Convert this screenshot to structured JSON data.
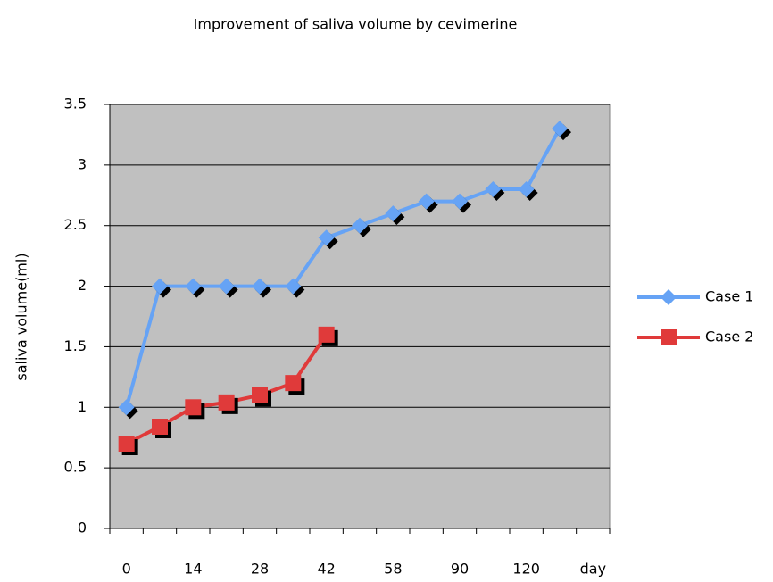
{
  "chart_data": {
    "type": "line",
    "title": "Improvement of saliva volume by cevimerine",
    "y_label": "saliva volume(ml)",
    "categories": [
      "0",
      null,
      "14",
      null,
      "28",
      null,
      "42",
      null,
      "58",
      null,
      "90",
      null,
      "120",
      null,
      "day"
    ],
    "series": [
      {
        "name": "Case 1",
        "color": "#66a3f5",
        "marker": "diamond",
        "values": [
          1,
          2,
          2,
          2,
          2,
          2,
          2.4,
          2.5,
          2.6,
          2.7,
          2.7,
          2.8,
          2.8,
          3.3,
          null
        ]
      },
      {
        "name": "Case 2",
        "color": "#e03a3a",
        "marker": "square",
        "values": [
          0.7,
          0.84,
          1,
          1.04,
          1.1,
          1.2,
          1.6,
          null,
          null,
          null,
          null,
          null,
          null,
          null,
          null
        ]
      }
    ],
    "ylim": [
      0,
      3.5
    ],
    "yticks": [
      0,
      0.5,
      1,
      1.5,
      2,
      2.5,
      3,
      3.5
    ],
    "grid": true,
    "legend": "right"
  }
}
